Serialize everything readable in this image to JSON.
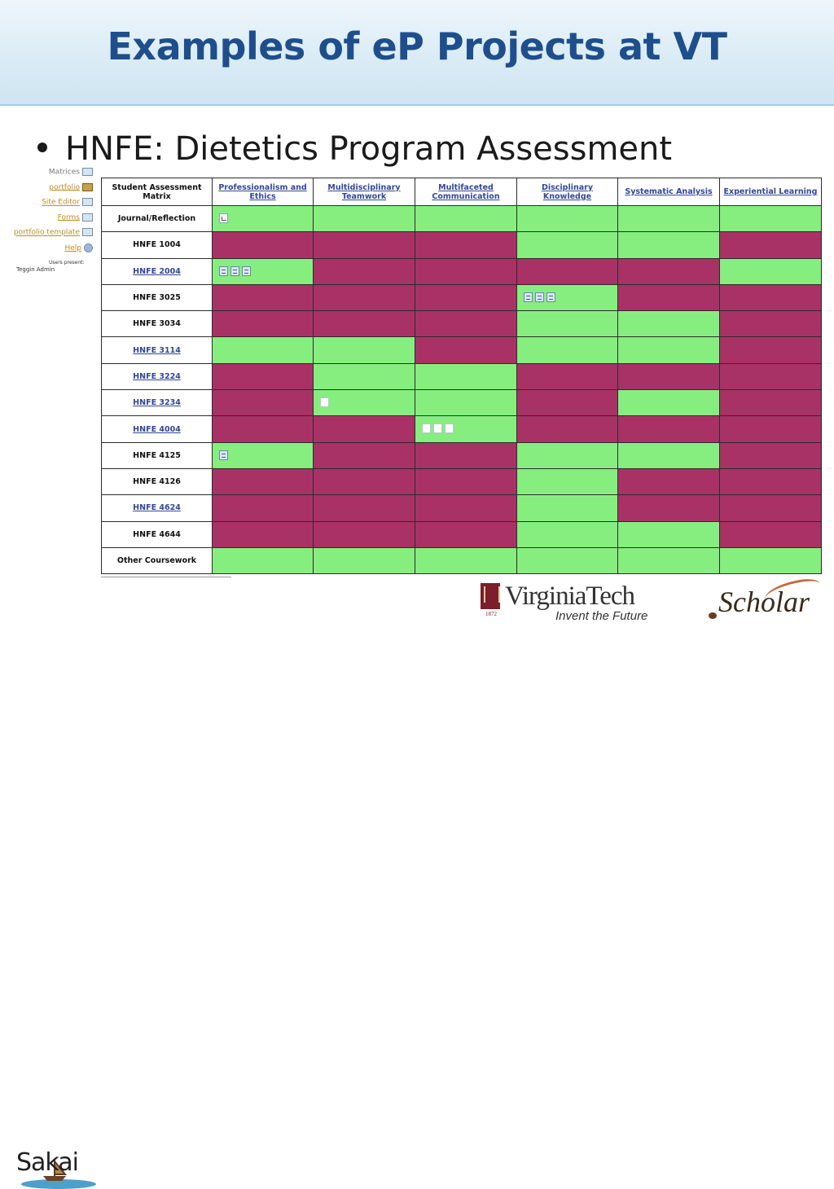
{
  "slide": {
    "title": "Examples of eP Projects at VT",
    "bullet": "HNFE: Dietetics Program Assessment"
  },
  "sidebar": {
    "items": [
      {
        "label": "Matrices",
        "icon": "matrix-icon"
      },
      {
        "label": "portfolio",
        "icon": "portfolio-icon"
      },
      {
        "label": "Site Editor",
        "icon": "site-editor-icon"
      },
      {
        "label": "Forms",
        "icon": "forms-icon"
      },
      {
        "label": "portfolio template",
        "icon": "template-icon"
      },
      {
        "label": "Help",
        "icon": "help-icon"
      }
    ],
    "users_present": "Users present:",
    "user": "Teggin Admin"
  },
  "matrix": {
    "corner_label": "Student Assessment Matrix",
    "columns": [
      "Professionalism and Ethics",
      "Multidisciplinary Teamwork",
      "Multifaceted Communication",
      "Disciplinary Knowledge",
      "Systematic Analysis",
      "Experiential Learning"
    ],
    "status_colors": {
      "G": "#86ee7f",
      "R": "#a83265"
    },
    "rows": [
      {
        "label": "Journal/Reflection",
        "link": false,
        "cells": [
          "G",
          "G",
          "G",
          "G",
          "G",
          "G"
        ]
      },
      {
        "label": "HNFE 1004",
        "link": false,
        "cells": [
          "R",
          "R",
          "R",
          "G",
          "G",
          "R"
        ]
      },
      {
        "label": "HNFE 2004",
        "link": true,
        "cells": [
          "G",
          "R",
          "R",
          "R",
          "R",
          "G"
        ]
      },
      {
        "label": "HNFE 3025",
        "link": false,
        "cells": [
          "R",
          "R",
          "R",
          "G",
          "R",
          "R"
        ]
      },
      {
        "label": "HNFE 3034",
        "link": false,
        "cells": [
          "R",
          "R",
          "R",
          "G",
          "G",
          "R"
        ]
      },
      {
        "label": "HNFE 3114",
        "link": true,
        "cells": [
          "G",
          "G",
          "R",
          "G",
          "G",
          "R"
        ]
      },
      {
        "label": "HNFE 3224",
        "link": true,
        "cells": [
          "R",
          "G",
          "G",
          "R",
          "R",
          "R"
        ]
      },
      {
        "label": "HNFE 3234",
        "link": true,
        "cells": [
          "R",
          "G",
          "G",
          "R",
          "G",
          "R"
        ]
      },
      {
        "label": "HNFE 4004",
        "link": true,
        "cells": [
          "R",
          "R",
          "G",
          "R",
          "R",
          "R"
        ]
      },
      {
        "label": "HNFE 4125",
        "link": false,
        "cells": [
          "G",
          "R",
          "R",
          "G",
          "G",
          "R"
        ]
      },
      {
        "label": "HNFE 4126",
        "link": false,
        "cells": [
          "R",
          "R",
          "R",
          "G",
          "R",
          "R"
        ]
      },
      {
        "label": "HNFE 4624",
        "link": true,
        "cells": [
          "R",
          "R",
          "R",
          "G",
          "R",
          "R"
        ]
      },
      {
        "label": "HNFE 4644",
        "link": false,
        "cells": [
          "R",
          "R",
          "R",
          "G",
          "G",
          "R"
        ]
      },
      {
        "label": "Other Coursework",
        "link": false,
        "cells": [
          "G",
          "G",
          "G",
          "G",
          "G",
          "G"
        ]
      }
    ],
    "attachments": [
      {
        "row": 0,
        "col": 0,
        "icons": [
          "chart"
        ]
      },
      {
        "row": 2,
        "col": 0,
        "icons": [
          "mail",
          "mail",
          "mail"
        ]
      },
      {
        "row": 3,
        "col": 3,
        "icons": [
          "mail",
          "mail",
          "mail"
        ]
      },
      {
        "row": 7,
        "col": 1,
        "icons": [
          "white"
        ]
      },
      {
        "row": 8,
        "col": 2,
        "icons": [
          "white",
          "white",
          "white"
        ]
      },
      {
        "row": 9,
        "col": 0,
        "icons": [
          "mail"
        ]
      }
    ]
  },
  "logos": {
    "sakai": "Sakai",
    "vt_year": "1872",
    "vt_name": "VirginiaTech",
    "vt_tagline": "Invent the Future",
    "scholar": "Scholar"
  }
}
